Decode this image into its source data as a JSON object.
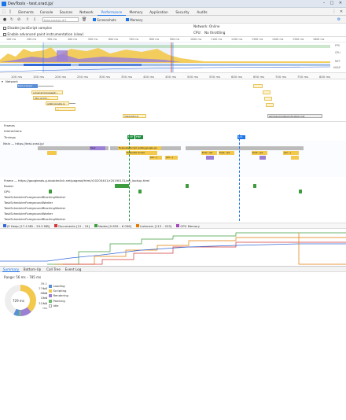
{
  "window": {
    "title": "DevTools - test.xrad.jp/"
  },
  "tabs": [
    "Elements",
    "Console",
    "Sources",
    "Network",
    "Performance",
    "Memory",
    "Application",
    "Security",
    "Audits"
  ],
  "active_tab": "Performance",
  "toolbar": {
    "url_field": "test.xrad.jp #1",
    "screenshots_label": "Screenshots",
    "memory_label": "Memory"
  },
  "options": {
    "disable_js_samples": "Disable JavaScript samples",
    "advanced_paint": "Enable advanced paint instrumentation (slow)",
    "network_label": "Network:",
    "network_value": "Online",
    "cpu_label": "CPU:",
    "cpu_value": "No throttling"
  },
  "overview": {
    "top_ticks": [
      "100 ms",
      "200 ms",
      "300 ms",
      "400 ms",
      "500 ms",
      "600 ms",
      "700 ms",
      "800 ms",
      "900 ms",
      "1000 ms",
      "1100 ms",
      "1200 ms",
      "1300 ms",
      "1400 ms",
      "1500 ms",
      "1600 ms"
    ],
    "right_labels": [
      "FPS",
      "CPU",
      "NET",
      "HEAP"
    ],
    "heap_value": "17.4 MB – 29.5 MB"
  },
  "main_ruler": [
    "100 ms",
    "150 ms",
    "200 ms",
    "250 ms",
    "300 ms",
    "350 ms",
    "400 ms",
    "450 ms",
    "500 ms",
    "550 ms",
    "600 ms",
    "650 ms",
    "700 ms",
    "750 ms",
    "800 ms"
  ],
  "network_track": {
    "label": "Network",
    "items": [
      "test.xrad.jp/",
      "a.tusnet.jp/pagead/...",
      "gtm.js?id=...",
      "adsbygoogle.js",
      "integrator.js",
      "..."
    ]
  },
  "network_labels_right": [
    "window.googlesyndication.net"
  ],
  "tracks": {
    "frames": "Frames",
    "interactions": "Interactions",
    "timings": "Timings",
    "timing_markers": [
      "FCP",
      "FMP",
      "DCL"
    ],
    "main": "Main — https://test.xrad.jp/",
    "main_bars": [
      "Task",
      "Evaluate Script",
      "Evaluate Script (adsbygoogle.js)",
      "Eval...ipt",
      "Eval...ipt",
      "Eval...ipt",
      "(an...)",
      "(an...)",
      "(an...)"
    ],
    "frame": "Frame — https://googleads.g.doubleclick.net/pagead/html/r20200401/r20190131/zrt_lookup.html",
    "raster": "Raster",
    "gpu": "GPU",
    "worker_1": "TaskSchedulerForegroundBlockingWorker",
    "worker_2": "TaskSchedulerForegroundWorker",
    "worker_3": "TaskSchedulerForegroundBlockingWorker",
    "worker_4": "TaskSchedulerForegroundWorker",
    "worker_5": "TaskSchedulerForegroundBlockingWorker"
  },
  "memory_legend": [
    {
      "label": "JS Heap [17.4 MB – 29.5 MB]",
      "color": "#3367d6"
    },
    {
      "label": "Documents [12 – 24]",
      "color": "#d13838"
    },
    {
      "label": "Nodes [0 659 – 6 096]",
      "color": "#3e9c3e"
    },
    {
      "label": "Listeners [113 – 205]",
      "color": "#e07b00"
    },
    {
      "label": "GPU Memory",
      "color": "#a347ba"
    }
  ],
  "bottom_tabs": [
    "Summary",
    "Bottom-Up",
    "Call Tree",
    "Event Log"
  ],
  "summary": {
    "range": "Range: 56 ms – 785 ms",
    "total": "729 ms",
    "rows": [
      {
        "ms": "39.1 ms",
        "label": "Loading",
        "color": "#5b8fd6"
      },
      {
        "ms": "274.7 ms",
        "label": "Scripting",
        "color": "#f2c94c"
      },
      {
        "ms": "86.8 ms",
        "label": "Rendering",
        "color": "#9b7fd4"
      },
      {
        "ms": "15.3 ms",
        "label": "Painting",
        "color": "#6dbb6d"
      },
      {
        "ms": "313.2 ms",
        "label": "Idle",
        "color": "#ffffff"
      }
    ]
  }
}
